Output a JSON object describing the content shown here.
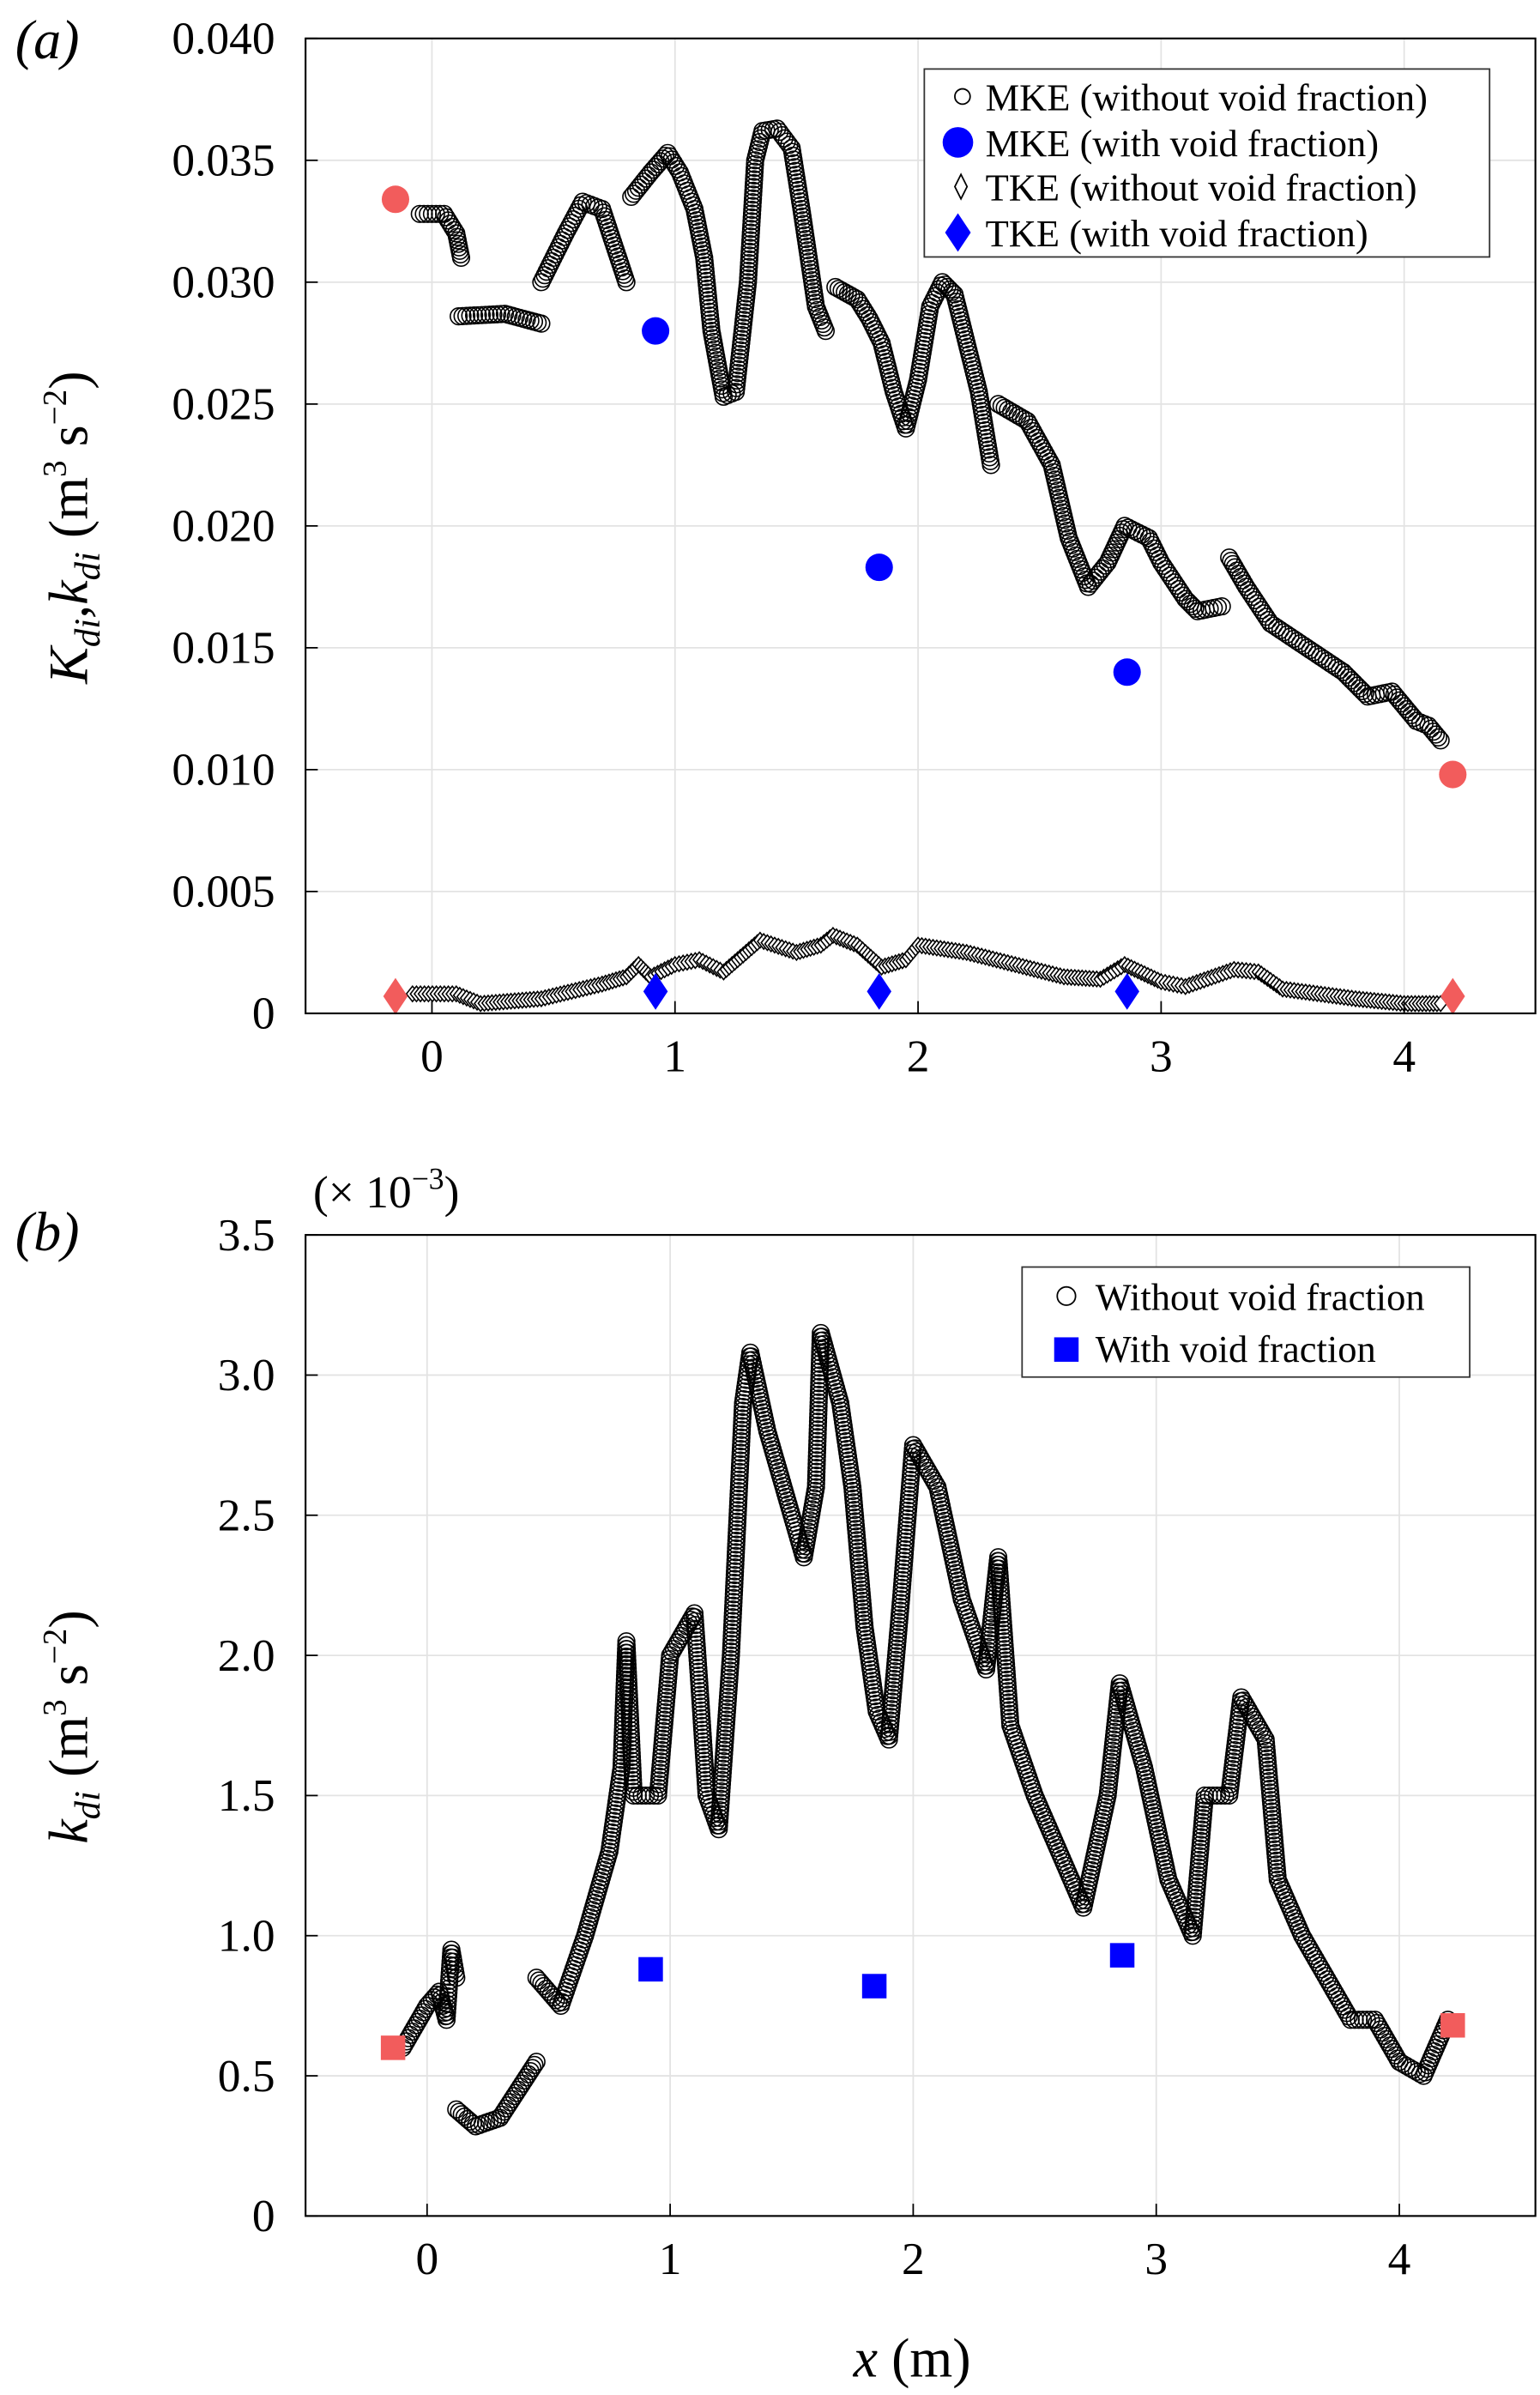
{
  "chart_data": [
    {
      "type": "scatter",
      "panel_label": "(a)",
      "ylabel_main": "K",
      "ylabel_sub1": "di",
      "ylabel_sep": ",k",
      "ylabel_sub2": "di",
      "ylabel_units": " (m",
      "ylabel_units_exp": "3",
      "ylabel_units_s": " s",
      "ylabel_units_sexp": "−2",
      "ylabel_close": ")",
      "xlim": [
        -0.52,
        4.54
      ],
      "ylim": [
        0,
        0.04
      ],
      "xticks": [
        0,
        1,
        2,
        3,
        4
      ],
      "xtick_labels": [
        "0",
        "1",
        "2",
        "3",
        "4"
      ],
      "yticks": [
        0,
        0.005,
        0.01,
        0.015,
        0.02,
        0.025,
        0.03,
        0.035,
        0.04
      ],
      "ytick_labels": [
        "0",
        "0.005",
        "0.010",
        "0.015",
        "0.020",
        "0.025",
        "0.030",
        "0.035",
        "0.040"
      ],
      "grid": true,
      "legend_position": "top-right",
      "legend": [
        "MKE (without void fraction)",
        "MKE (with void fraction)",
        "TKE (without void fraction)",
        "TKE (with void fraction)"
      ],
      "series": [
        {
          "name": "MKE (without void fraction)",
          "marker": "open-circle",
          "trace_segments": [
            [
              [
                -0.05,
                0.0328
              ],
              [
                0.05,
                0.0328
              ],
              [
                0.1,
                0.032
              ],
              [
                0.12,
                0.031
              ]
            ],
            [
              [
                0.11,
                0.0286
              ],
              [
                0.3,
                0.0287
              ],
              [
                0.45,
                0.0283
              ]
            ],
            [
              [
                0.45,
                0.03
              ],
              [
                0.55,
                0.032
              ],
              [
                0.62,
                0.0333
              ],
              [
                0.7,
                0.033
              ],
              [
                0.75,
                0.0315
              ],
              [
                0.8,
                0.03
              ]
            ],
            [
              [
                0.82,
                0.0335
              ],
              [
                0.9,
                0.0345
              ],
              [
                0.97,
                0.0353
              ],
              [
                1.02,
                0.0345
              ],
              [
                1.08,
                0.033
              ],
              [
                1.12,
                0.031
              ],
              [
                1.15,
                0.028
              ],
              [
                1.2,
                0.0253
              ],
              [
                1.25,
                0.0255
              ],
              [
                1.3,
                0.03
              ],
              [
                1.33,
                0.035
              ],
              [
                1.36,
                0.0362
              ],
              [
                1.42,
                0.0363
              ],
              [
                1.48,
                0.0355
              ],
              [
                1.52,
                0.033
              ],
              [
                1.58,
                0.029
              ],
              [
                1.62,
                0.028
              ]
            ],
            [
              [
                1.66,
                0.0298
              ],
              [
                1.75,
                0.0293
              ],
              [
                1.8,
                0.0285
              ],
              [
                1.85,
                0.0275
              ],
              [
                1.9,
                0.0255
              ],
              [
                1.95,
                0.024
              ],
              [
                2.0,
                0.026
              ],
              [
                2.05,
                0.029
              ],
              [
                2.1,
                0.03
              ],
              [
                2.15,
                0.0295
              ],
              [
                2.2,
                0.0275
              ],
              [
                2.25,
                0.0255
              ],
              [
                2.3,
                0.0225
              ]
            ],
            [
              [
                2.33,
                0.025
              ],
              [
                2.45,
                0.0243
              ],
              [
                2.55,
                0.0225
              ],
              [
                2.62,
                0.0195
              ],
              [
                2.7,
                0.0175
              ],
              [
                2.78,
                0.0185
              ],
              [
                2.85,
                0.02
              ],
              [
                2.95,
                0.0195
              ],
              [
                3.0,
                0.0185
              ],
              [
                3.1,
                0.017
              ],
              [
                3.15,
                0.0165
              ],
              [
                3.25,
                0.0167
              ]
            ],
            [
              [
                3.28,
                0.0187
              ],
              [
                3.35,
                0.0175
              ],
              [
                3.45,
                0.016
              ],
              [
                3.6,
                0.015
              ],
              [
                3.75,
                0.014
              ],
              [
                3.85,
                0.013
              ],
              [
                3.95,
                0.0132
              ],
              [
                4.05,
                0.012
              ],
              [
                4.1,
                0.0118
              ],
              [
                4.15,
                0.0112
              ]
            ]
          ]
        },
        {
          "name": "MKE (with void fraction)",
          "marker": "filled-circle",
          "color": "#0000ff",
          "points": [
            [
              0.92,
              0.028
            ],
            [
              1.84,
              0.0183
            ],
            [
              2.86,
              0.014
            ]
          ]
        },
        {
          "name": "MKE (with void fraction) end points",
          "marker": "filled-circle",
          "color": "#f25c5c",
          "points": [
            [
              -0.15,
              0.0334
            ],
            [
              4.2,
              0.0098
            ]
          ]
        },
        {
          "name": "TKE (without void fraction)",
          "marker": "open-diamond",
          "trace_segments": [
            [
              [
                -0.08,
                0.0008
              ],
              [
                0.1,
                0.0008
              ],
              [
                0.2,
                0.0004
              ],
              [
                0.45,
                0.0006
              ],
              [
                0.7,
                0.0012
              ],
              [
                0.8,
                0.0015
              ],
              [
                0.85,
                0.002
              ],
              [
                0.9,
                0.0015
              ],
              [
                1.0,
                0.002
              ],
              [
                1.1,
                0.0022
              ],
              [
                1.2,
                0.0017
              ],
              [
                1.35,
                0.003
              ],
              [
                1.5,
                0.0025
              ],
              [
                1.6,
                0.0028
              ],
              [
                1.65,
                0.0032
              ],
              [
                1.75,
                0.0028
              ],
              [
                1.85,
                0.0019
              ],
              [
                1.95,
                0.0022
              ],
              [
                2.0,
                0.0028
              ],
              [
                2.2,
                0.0025
              ],
              [
                2.4,
                0.002
              ],
              [
                2.6,
                0.0015
              ],
              [
                2.75,
                0.0014
              ],
              [
                2.85,
                0.002
              ],
              [
                3.0,
                0.0013
              ],
              [
                3.1,
                0.0011
              ],
              [
                3.3,
                0.0018
              ],
              [
                3.4,
                0.0017
              ],
              [
                3.5,
                0.001
              ],
              [
                3.8,
                0.0006
              ],
              [
                4.0,
                0.0004
              ],
              [
                4.15,
                0.0004
              ]
            ]
          ]
        },
        {
          "name": "TKE (with void fraction)",
          "marker": "filled-diamond",
          "color": "#0000ff",
          "points": [
            [
              0.92,
              0.0009
            ],
            [
              1.84,
              0.0009
            ],
            [
              2.86,
              0.0009
            ]
          ]
        },
        {
          "name": "TKE (with void fraction) end points",
          "marker": "filled-diamond",
          "color": "#f25c5c",
          "points": [
            [
              -0.15,
              0.0007
            ],
            [
              4.2,
              0.0007
            ]
          ]
        }
      ]
    },
    {
      "type": "scatter",
      "panel_label": "(b)",
      "scale_note": "(× 10",
      "scale_note_exp": "−3",
      "scale_note_close": ")",
      "ylabel_main": "k",
      "ylabel_sub": "di",
      "ylabel_units": " (m",
      "ylabel_units_exp": "3",
      "ylabel_units_s": " s",
      "ylabel_units_sexp": "−2",
      "ylabel_close": ")",
      "xlabel_main": "x",
      "xlabel_units": " (m)",
      "xlim": [
        -0.5,
        4.56
      ],
      "ylim": [
        0,
        3.5
      ],
      "xticks": [
        0,
        1,
        2,
        3,
        4
      ],
      "xtick_labels": [
        "0",
        "1",
        "2",
        "3",
        "4"
      ],
      "yticks": [
        0,
        0.5,
        1.0,
        1.5,
        2.0,
        2.5,
        3.0,
        3.5
      ],
      "ytick_labels": [
        "0",
        "0.5",
        "1.0",
        "1.5",
        "2.0",
        "2.5",
        "3.0",
        "3.5"
      ],
      "grid": true,
      "legend_position": "top-right",
      "legend": [
        "Without void fraction",
        "With void fraction"
      ],
      "series": [
        {
          "name": "Without void fraction",
          "marker": "open-circle",
          "trace_segments": [
            [
              [
                -0.1,
                0.6
              ],
              [
                0.0,
                0.75
              ],
              [
                0.05,
                0.8
              ],
              [
                0.08,
                0.7
              ],
              [
                0.1,
                0.95
              ],
              [
                0.12,
                0.85
              ]
            ],
            [
              [
                0.12,
                0.38
              ],
              [
                0.2,
                0.32
              ],
              [
                0.3,
                0.35
              ],
              [
                0.45,
                0.55
              ]
            ],
            [
              [
                0.45,
                0.85
              ],
              [
                0.55,
                0.75
              ],
              [
                0.65,
                1.0
              ],
              [
                0.75,
                1.3
              ],
              [
                0.8,
                1.6
              ],
              [
                0.82,
                2.05
              ],
              [
                0.85,
                1.5
              ],
              [
                0.95,
                1.5
              ],
              [
                1.0,
                2.0
              ],
              [
                1.1,
                2.15
              ],
              [
                1.12,
                1.9
              ],
              [
                1.15,
                1.5
              ],
              [
                1.2,
                1.38
              ],
              [
                1.25,
                2.0
              ],
              [
                1.3,
                2.9
              ],
              [
                1.33,
                3.08
              ],
              [
                1.4,
                2.8
              ],
              [
                1.5,
                2.5
              ],
              [
                1.55,
                2.35
              ],
              [
                1.6,
                2.6
              ],
              [
                1.62,
                3.15
              ],
              [
                1.7,
                2.9
              ],
              [
                1.75,
                2.6
              ],
              [
                1.8,
                2.1
              ],
              [
                1.85,
                1.8
              ],
              [
                1.9,
                1.7
              ],
              [
                1.95,
                2.2
              ],
              [
                2.0,
                2.75
              ],
              [
                2.1,
                2.6
              ],
              [
                2.2,
                2.2
              ],
              [
                2.3,
                1.95
              ],
              [
                2.35,
                2.35
              ],
              [
                2.4,
                1.75
              ],
              [
                2.5,
                1.5
              ],
              [
                2.6,
                1.3
              ],
              [
                2.7,
                1.1
              ],
              [
                2.8,
                1.5
              ],
              [
                2.85,
                1.9
              ],
              [
                2.95,
                1.6
              ],
              [
                3.05,
                1.2
              ],
              [
                3.15,
                1.0
              ],
              [
                3.2,
                1.5
              ],
              [
                3.3,
                1.5
              ],
              [
                3.35,
                1.85
              ],
              [
                3.45,
                1.7
              ],
              [
                3.5,
                1.2
              ],
              [
                3.6,
                1.0
              ],
              [
                3.8,
                0.7
              ],
              [
                3.9,
                0.7
              ],
              [
                4.0,
                0.55
              ],
              [
                4.1,
                0.5
              ],
              [
                4.2,
                0.7
              ]
            ]
          ]
        },
        {
          "name": "With void fraction",
          "marker": "filled-square",
          "color": "#0000ff",
          "points": [
            [
              0.92,
              0.88
            ],
            [
              1.84,
              0.82
            ],
            [
              2.86,
              0.93
            ]
          ]
        },
        {
          "name": "With void fraction end points",
          "marker": "filled-square",
          "color": "#f25c5c",
          "points": [
            [
              -0.14,
              0.6
            ],
            [
              4.22,
              0.68
            ]
          ]
        }
      ]
    }
  ]
}
